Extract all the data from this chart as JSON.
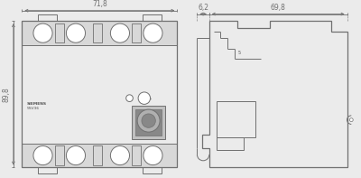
{
  "bg_color": "#ebebeb",
  "line_color": "#707070",
  "dim_color": "#707070",
  "text_color": "#555555",
  "dim_71_8": "71,8",
  "dim_89_8": "89,8",
  "dim_6_2": "6,2",
  "dim_69_8": "69,8",
  "brand": "SIEMENS",
  "model": "5SV36",
  "lw": 0.7,
  "lw_thick": 0.9,
  "lw_dim": 0.6
}
